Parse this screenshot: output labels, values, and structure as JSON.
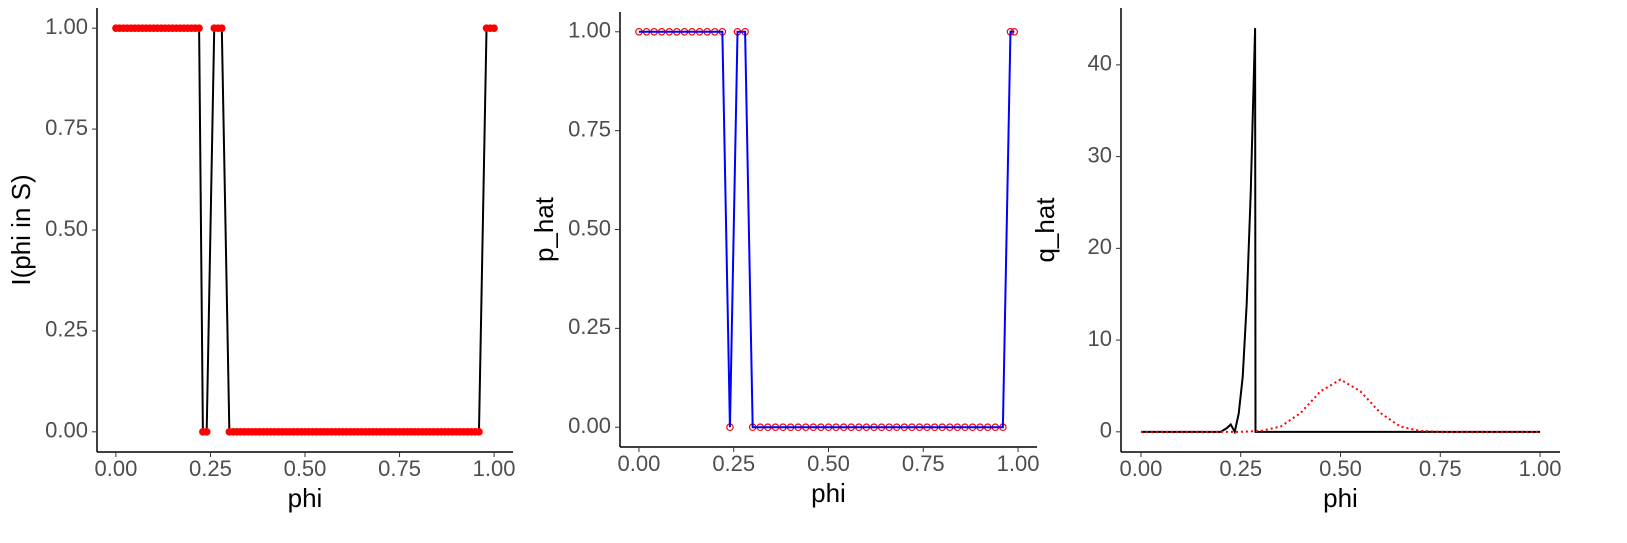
{
  "chart_data": [
    {
      "type": "line",
      "x_label": "phi",
      "y_label": "I(phi in S)",
      "markers": "filled",
      "point_color": "#ff0000",
      "line_color": "#000000",
      "xlim": [
        -0.05,
        1.05
      ],
      "ylim": [
        -0.05,
        1.05
      ],
      "xticks": [
        {
          "value": 0,
          "label": "0.00"
        },
        {
          "value": 0.25,
          "label": "0.25"
        },
        {
          "value": 0.5,
          "label": "0.50"
        },
        {
          "value": 0.75,
          "label": "0.75"
        },
        {
          "value": 1,
          "label": "1.00"
        }
      ],
      "yticks": [
        {
          "value": 0,
          "label": "0.00"
        },
        {
          "value": 0.25,
          "label": "0.25"
        },
        {
          "value": 0.5,
          "label": "0.50"
        },
        {
          "value": 0.75,
          "label": "0.75"
        },
        {
          "value": 1,
          "label": "1.00"
        }
      ],
      "series": [
        {
          "x": [
            0,
            0.01,
            0.02,
            0.03,
            0.04,
            0.05,
            0.06,
            0.07,
            0.08,
            0.09,
            0.1,
            0.11,
            0.12,
            0.13,
            0.14,
            0.15,
            0.16,
            0.17,
            0.18,
            0.19,
            0.2,
            0.21,
            0.22,
            0.23,
            0.24,
            0.26,
            0.27,
            0.28,
            0.3,
            0.31,
            0.32,
            0.33,
            0.34,
            0.35,
            0.36,
            0.37,
            0.38,
            0.39,
            0.4,
            0.41,
            0.42,
            0.43,
            0.44,
            0.45,
            0.46,
            0.47,
            0.48,
            0.49,
            0.5,
            0.51,
            0.52,
            0.53,
            0.54,
            0.55,
            0.56,
            0.57,
            0.58,
            0.59,
            0.6,
            0.61,
            0.62,
            0.63,
            0.64,
            0.65,
            0.66,
            0.67,
            0.68,
            0.69,
            0.7,
            0.71,
            0.72,
            0.73,
            0.74,
            0.75,
            0.76,
            0.77,
            0.78,
            0.79,
            0.8,
            0.81,
            0.82,
            0.83,
            0.84,
            0.85,
            0.86,
            0.87,
            0.88,
            0.89,
            0.9,
            0.91,
            0.92,
            0.93,
            0.94,
            0.95,
            0.96,
            0.98,
            0.99,
            1
          ],
          "values": [
            1,
            1,
            1,
            1,
            1,
            1,
            1,
            1,
            1,
            1,
            1,
            1,
            1,
            1,
            1,
            1,
            1,
            1,
            1,
            1,
            1,
            1,
            1,
            0,
            0,
            1,
            1,
            1,
            0,
            0,
            0,
            0,
            0,
            0,
            0,
            0,
            0,
            0,
            0,
            0,
            0,
            0,
            0,
            0,
            0,
            0,
            0,
            0,
            0,
            0,
            0,
            0,
            0,
            0,
            0,
            0,
            0,
            0,
            0,
            0,
            0,
            0,
            0,
            0,
            0,
            0,
            0,
            0,
            0,
            0,
            0,
            0,
            0,
            0,
            0,
            0,
            0,
            0,
            0,
            0,
            0,
            0,
            0,
            0,
            0,
            0,
            0,
            0,
            0,
            0,
            0,
            0,
            0,
            0,
            0,
            1,
            1,
            1
          ]
        }
      ]
    },
    {
      "type": "line",
      "x_label": "phi",
      "y_label": "p_hat",
      "markers": "hollow",
      "point_color": "#ff0000",
      "line_color": "#0000ff",
      "xlim": [
        -0.05,
        1.05
      ],
      "ylim": [
        -0.05,
        1.05
      ],
      "xticks": [
        {
          "value": 0,
          "label": "0.00"
        },
        {
          "value": 0.25,
          "label": "0.25"
        },
        {
          "value": 0.5,
          "label": "0.50"
        },
        {
          "value": 0.75,
          "label": "0.75"
        },
        {
          "value": 1,
          "label": "1.00"
        }
      ],
      "yticks": [
        {
          "value": 0,
          "label": "0.00"
        },
        {
          "value": 0.25,
          "label": "0.25"
        },
        {
          "value": 0.5,
          "label": "0.50"
        },
        {
          "value": 0.75,
          "label": "0.75"
        },
        {
          "value": 1,
          "label": "1.00"
        }
      ],
      "series": [
        {
          "x": [
            0,
            0.02,
            0.04,
            0.06,
            0.08,
            0.1,
            0.12,
            0.14,
            0.16,
            0.18,
            0.2,
            0.22,
            0.24,
            0.26,
            0.28,
            0.3,
            0.32,
            0.34,
            0.36,
            0.38,
            0.4,
            0.42,
            0.44,
            0.46,
            0.48,
            0.5,
            0.52,
            0.54,
            0.56,
            0.58,
            0.6,
            0.62,
            0.64,
            0.66,
            0.68,
            0.7,
            0.72,
            0.74,
            0.76,
            0.78,
            0.8,
            0.82,
            0.84,
            0.86,
            0.88,
            0.9,
            0.92,
            0.94,
            0.96,
            0.98,
            0.99
          ],
          "values": [
            1,
            1,
            1,
            1,
            1,
            1,
            1,
            1,
            1,
            1,
            1,
            1,
            0,
            1,
            1,
            0,
            0,
            0,
            0,
            0,
            0,
            0,
            0,
            0,
            0,
            0,
            0,
            0,
            0,
            0,
            0,
            0,
            0,
            0,
            0,
            0,
            0,
            0,
            0,
            0,
            0,
            0,
            0,
            0,
            0,
            0,
            0,
            0,
            0,
            1,
            1
          ]
        }
      ]
    },
    {
      "type": "line",
      "x_label": "phi",
      "y_label": "q_hat",
      "xlim": [
        -0.05,
        1.05
      ],
      "ylim": [
        -2.2,
        46.2
      ],
      "xticks": [
        {
          "value": 0,
          "label": "0.00"
        },
        {
          "value": 0.25,
          "label": "0.25"
        },
        {
          "value": 0.5,
          "label": "0.50"
        },
        {
          "value": 0.75,
          "label": "0.75"
        },
        {
          "value": 1,
          "label": "1.00"
        }
      ],
      "yticks": [
        0,
        10,
        20,
        30,
        40
      ],
      "series": [
        {
          "color": "#000000",
          "dash": "solid",
          "x": [
            0,
            0.2,
            0.215,
            0.225,
            0.235,
            0.245,
            0.255,
            0.265,
            0.275,
            0.286,
            0.287,
            1
          ],
          "values": [
            0,
            0,
            0.4,
            0.8,
            0,
            2,
            6,
            14,
            26,
            44,
            0,
            0
          ]
        },
        {
          "color": "#ff0000",
          "dash": "dotted",
          "x": [
            0,
            0.05,
            0.1,
            0.15,
            0.2,
            0.25,
            0.3,
            0.35,
            0.4,
            0.45,
            0.5,
            0.55,
            0.6,
            0.65,
            0.7,
            0.75,
            0.8,
            0.85,
            0.9,
            0.95,
            1
          ],
          "values": [
            0,
            0,
            0,
            0,
            0,
            0,
            0.1,
            0.57,
            2.05,
            4.42,
            5.7,
            4.42,
            2.05,
            0.57,
            0.1,
            0,
            0,
            0,
            0,
            0,
            0
          ]
        }
      ]
    }
  ]
}
